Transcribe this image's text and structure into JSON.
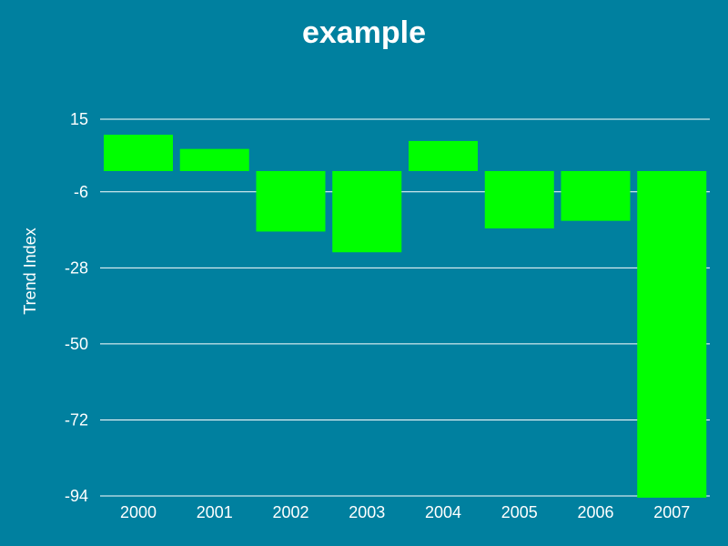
{
  "chart_data": {
    "type": "bar",
    "title": "example",
    "xlabel": "",
    "ylabel": "Trend Index",
    "categories": [
      "2000",
      "2001",
      "2002",
      "2003",
      "2004",
      "2005",
      "2006",
      "2007"
    ],
    "values": [
      10.5,
      6.4,
      -17.5,
      -23.5,
      8.7,
      -16.6,
      -14.4,
      -94.5
    ],
    "baseline": 0,
    "ylim": [
      -94,
      15
    ],
    "yticks": [
      "15",
      "-6",
      "-28",
      "-50",
      "-72",
      "-94"
    ],
    "ytick_values": [
      15,
      -6,
      -28,
      -50,
      -72,
      -94
    ],
    "grid": true,
    "legend": "none",
    "colors": {
      "background": "#00809f",
      "bar": "#00ff00",
      "grid": "#ffffff",
      "text": "#ffffff"
    }
  }
}
